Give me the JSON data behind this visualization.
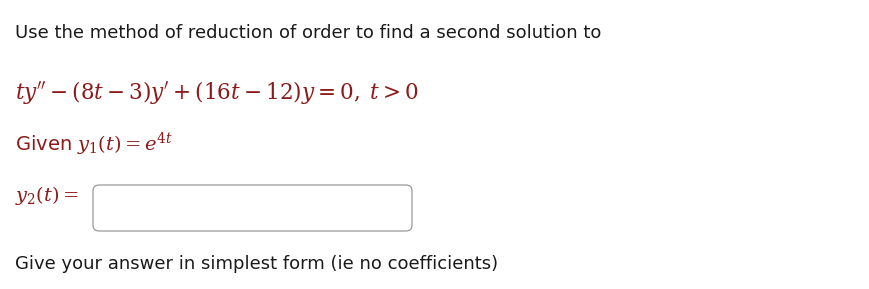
{
  "bg_color": "#ffffff",
  "text_color": "#1a1a1a",
  "math_color": "#8B1A1A",
  "line1": "Use the method of reduction of order to find a second solution to",
  "line5": "Give your answer in simplest form (ie no coefficients)",
  "font_size_text": 13.0,
  "font_size_math": 15.5,
  "font_size_given": 14.0,
  "fig_w": 8.7,
  "fig_h": 2.89,
  "dpi": 100
}
